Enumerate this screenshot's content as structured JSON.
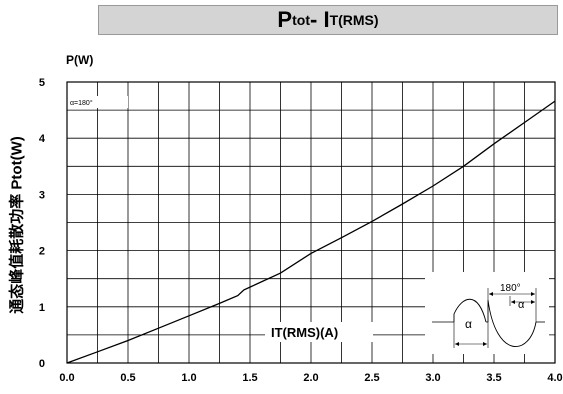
{
  "title": {
    "main_a": "P",
    "sub_a": "tot",
    "main_b": "- I",
    "sub_b": "T(RMS)"
  },
  "side_ylabel": "通态峰值耗散功率 Ptot(W)",
  "chart_data": {
    "type": "line",
    "title": "Ptot- IT(RMS)",
    "ylabel": "P(W)",
    "xlabel": "IT(RMS)(A)",
    "xlim": [
      0,
      4.0
    ],
    "ylim": [
      0,
      5
    ],
    "xticks": [
      "0.0",
      "0.5",
      "1.0",
      "1.5",
      "2.0",
      "2.5",
      "3.0",
      "3.5",
      "4.0"
    ],
    "yticks": [
      "0",
      "1",
      "2",
      "3",
      "4",
      "5"
    ],
    "grid": true,
    "annotation": "α=180°",
    "inset_labels": [
      "180°",
      "α",
      "α"
    ],
    "series": [
      {
        "name": "",
        "x": [
          0.0,
          0.25,
          0.5,
          0.75,
          1.0,
          1.25,
          1.4,
          1.45,
          1.5,
          1.75,
          2.0,
          2.25,
          2.5,
          2.75,
          3.0,
          3.25,
          3.5,
          3.75,
          4.0
        ],
        "y": [
          0.0,
          0.2,
          0.4,
          0.62,
          0.84,
          1.06,
          1.2,
          1.3,
          1.35,
          1.6,
          1.95,
          2.23,
          2.52,
          2.83,
          3.15,
          3.5,
          3.9,
          4.28,
          4.66
        ]
      }
    ]
  }
}
